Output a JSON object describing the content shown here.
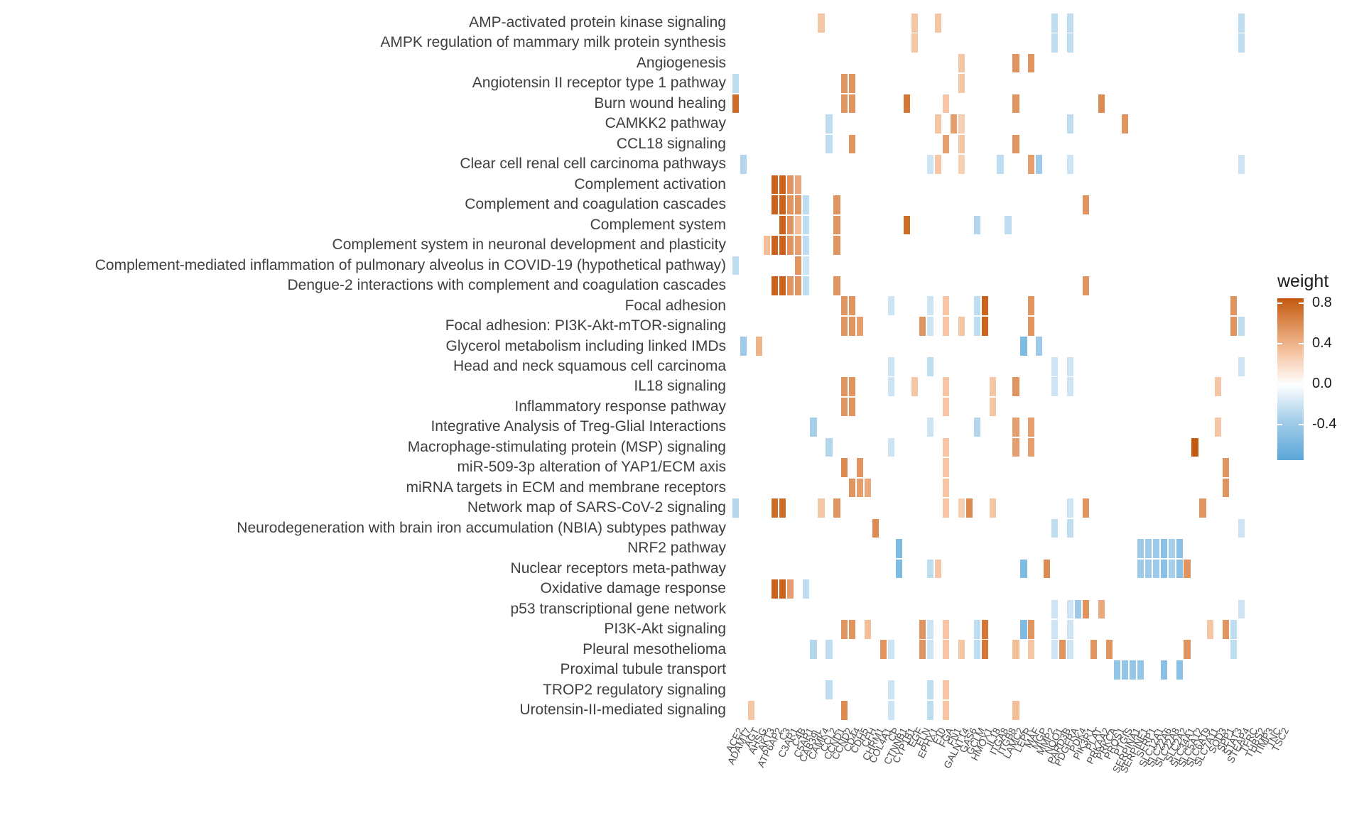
{
  "chart_data": {
    "type": "heatmap",
    "title": "",
    "xlabel": "",
    "ylabel": "",
    "legend": {
      "title": "weight",
      "tick_labels": [
        "0.8",
        "0.4",
        "0.0",
        "-0.4"
      ],
      "tick_values": [
        0.8,
        0.4,
        0.0,
        -0.4
      ],
      "domain": [
        0.85,
        -0.75
      ],
      "position": "right"
    },
    "grid": "off",
    "colors": {
      "high": "#c4590f",
      "mid_high": "#f3bd97",
      "mid": "#ffffff",
      "mid_low": "#a6cfea",
      "low": "#5aa6d8",
      "background": "#ffffff",
      "label_gray": "#3f3f3f"
    },
    "rows": [
      "AMP-activated protein kinase signaling",
      "AMPK regulation of mammary milk protein synthesis",
      "Angiogenesis",
      "Angiotensin II receptor type 1 pathway",
      "Burn wound healing",
      "CAMKK2 pathway",
      "CCL18 signaling",
      "Clear cell renal cell carcinoma pathways",
      "Complement activation",
      "Complement and coagulation cascades",
      "Complement system",
      "Complement system in neuronal development and plasticity",
      "Complement-mediated inflammation of pulmonary alveolus in COVID-19 (hypothetical pathway)",
      "Dengue-2 interactions with complement and coagulation cascades",
      "Focal adhesion",
      "Focal adhesion: PI3K-Akt-mTOR-signaling",
      "Glycerol metabolism including linked IMDs",
      "Head and neck squamous cell carcinoma",
      "IL18 signaling",
      "Inflammatory response pathway",
      "Integrative Analysis of  Treg-Glial Interactions",
      "Macrophage-stimulating protein (MSP) signaling",
      "miR-509-3p alteration of YAP1/ECM axis",
      "miRNA targets in ECM and membrane receptors",
      "Network map of SARS-CoV-2 signaling",
      "Neurodegeneration with brain iron accumulation (NBIA) subtypes pathway",
      "NRF2 pathway",
      "Nuclear receptors meta-pathway",
      "Oxidative damage response",
      "p53 transcriptional gene network",
      "PI3K-Akt signaling",
      "Pleural mesothelioma",
      "Proximal tubule transport",
      "TROP2 regulatory signaling",
      "Urotensin-II-mediated signaling"
    ],
    "columns": [
      "ACE2",
      "ADAM17",
      "AGT",
      "AHSG",
      "AKT3",
      "ATP6AP2",
      "C3",
      "C3AR1",
      "C4B",
      "C5AR1",
      "CAB39L",
      "CAMK4",
      "CCL2",
      "CCND1",
      "CCND2",
      "CD44",
      "CDH5",
      "CFH",
      "CHRM1",
      "COL4A1",
      "CP",
      "CTNNB1",
      "CYP1B1",
      "EGF",
      "ELN",
      "EPHX1",
      "F10",
      "FGA",
      "FN1",
      "GALNT14",
      "GAS6",
      "GCLM",
      "HMOX1",
      "IL18",
      "ITGA8",
      "ITGB8",
      "LAMC2",
      "LEPR",
      "MAF",
      "MGP",
      "MMP2",
      "NQO1",
      "PARD3B",
      "PDGFRA",
      "PDK4",
      "PIK3R1",
      "PLAT",
      "PRKAA2",
      "PRKCA",
      "PROS1",
      "PTGIS",
      "SERPINA1",
      "SERPINE1",
      "SFRP1",
      "SLC12A1",
      "SLC22A6",
      "SLC22A8",
      "SLC2A2",
      "SLC34A1",
      "SLC5A12",
      "SLC6A19",
      "SLC7A11",
      "SOD3",
      "SPP1",
      "STAT3",
      "STEAP4",
      "TFRC",
      "THBS2",
      "TIMP3",
      "TNC",
      "TSC2"
    ],
    "cells": [
      [
        0,
        12,
        0.3
      ],
      [
        0,
        24,
        0.3
      ],
      [
        0,
        27,
        0.3
      ],
      [
        0,
        42,
        -0.25
      ],
      [
        0,
        44,
        -0.25
      ],
      [
        0,
        66,
        -0.25
      ],
      [
        1,
        24,
        0.3
      ],
      [
        1,
        42,
        -0.25
      ],
      [
        1,
        44,
        -0.25
      ],
      [
        1,
        66,
        -0.25
      ],
      [
        2,
        30,
        0.3
      ],
      [
        2,
        37,
        0.55
      ],
      [
        2,
        39,
        0.55
      ],
      [
        3,
        1,
        -0.25
      ],
      [
        3,
        15,
        0.55
      ],
      [
        3,
        16,
        0.55
      ],
      [
        3,
        30,
        0.3
      ],
      [
        4,
        1,
        0.75
      ],
      [
        4,
        15,
        0.55
      ],
      [
        4,
        16,
        0.55
      ],
      [
        4,
        23,
        0.7
      ],
      [
        4,
        28,
        0.3
      ],
      [
        4,
        37,
        0.55
      ],
      [
        4,
        48,
        0.6
      ],
      [
        5,
        13,
        -0.25
      ],
      [
        5,
        27,
        0.3
      ],
      [
        5,
        29,
        0.5
      ],
      [
        5,
        30,
        0.25
      ],
      [
        5,
        44,
        -0.25
      ],
      [
        5,
        51,
        0.55
      ],
      [
        6,
        13,
        -0.25
      ],
      [
        6,
        16,
        0.55
      ],
      [
        6,
        28,
        0.5
      ],
      [
        6,
        30,
        0.3
      ],
      [
        6,
        37,
        0.55
      ],
      [
        7,
        2,
        -0.3
      ],
      [
        7,
        26,
        -0.2
      ],
      [
        7,
        27,
        0.3
      ],
      [
        7,
        30,
        0.25
      ],
      [
        7,
        35,
        -0.25
      ],
      [
        7,
        39,
        0.5
      ],
      [
        7,
        40,
        -0.4
      ],
      [
        7,
        44,
        -0.2
      ],
      [
        7,
        66,
        -0.2
      ],
      [
        8,
        6,
        0.8
      ],
      [
        8,
        7,
        0.8
      ],
      [
        8,
        8,
        0.55
      ],
      [
        8,
        9,
        0.45
      ],
      [
        9,
        6,
        0.8
      ],
      [
        9,
        7,
        0.8
      ],
      [
        9,
        8,
        0.55
      ],
      [
        9,
        9,
        0.55
      ],
      [
        9,
        10,
        -0.25
      ],
      [
        9,
        14,
        0.55
      ],
      [
        9,
        46,
        0.55
      ],
      [
        10,
        7,
        0.8
      ],
      [
        10,
        8,
        0.55
      ],
      [
        10,
        9,
        0.35
      ],
      [
        10,
        10,
        -0.25
      ],
      [
        10,
        14,
        0.55
      ],
      [
        10,
        23,
        0.75
      ],
      [
        10,
        32,
        -0.3
      ],
      [
        10,
        36,
        -0.25
      ],
      [
        11,
        5,
        0.35
      ],
      [
        11,
        6,
        0.8
      ],
      [
        11,
        7,
        0.8
      ],
      [
        11,
        8,
        0.55
      ],
      [
        11,
        9,
        0.5
      ],
      [
        11,
        10,
        -0.25
      ],
      [
        11,
        14,
        0.55
      ],
      [
        12,
        1,
        -0.25
      ],
      [
        12,
        9,
        0.55
      ],
      [
        12,
        10,
        -0.2
      ],
      [
        13,
        6,
        0.8
      ],
      [
        13,
        7,
        0.8
      ],
      [
        13,
        8,
        0.55
      ],
      [
        13,
        9,
        0.55
      ],
      [
        13,
        10,
        -0.25
      ],
      [
        13,
        14,
        0.55
      ],
      [
        13,
        46,
        0.55
      ],
      [
        14,
        15,
        0.55
      ],
      [
        14,
        16,
        0.55
      ],
      [
        14,
        21,
        -0.2
      ],
      [
        14,
        26,
        -0.2
      ],
      [
        14,
        28,
        0.3
      ],
      [
        14,
        32,
        -0.25
      ],
      [
        14,
        33,
        0.8
      ],
      [
        14,
        39,
        0.55
      ],
      [
        14,
        65,
        0.55
      ],
      [
        15,
        15,
        0.55
      ],
      [
        15,
        16,
        0.55
      ],
      [
        15,
        17,
        0.5
      ],
      [
        15,
        25,
        0.55
      ],
      [
        15,
        26,
        -0.2
      ],
      [
        15,
        28,
        0.3
      ],
      [
        15,
        30,
        0.3
      ],
      [
        15,
        32,
        -0.25
      ],
      [
        15,
        33,
        0.8
      ],
      [
        15,
        39,
        0.55
      ],
      [
        15,
        65,
        0.55
      ],
      [
        15,
        66,
        -0.25
      ],
      [
        16,
        2,
        -0.4
      ],
      [
        16,
        4,
        0.4
      ],
      [
        16,
        38,
        -0.55
      ],
      [
        16,
        40,
        -0.4
      ],
      [
        17,
        21,
        -0.2
      ],
      [
        17,
        26,
        -0.25
      ],
      [
        17,
        42,
        -0.2
      ],
      [
        17,
        44,
        -0.2
      ],
      [
        17,
        66,
        -0.2
      ],
      [
        18,
        15,
        0.55
      ],
      [
        18,
        16,
        0.55
      ],
      [
        18,
        21,
        -0.2
      ],
      [
        18,
        24,
        0.3
      ],
      [
        18,
        28,
        0.3
      ],
      [
        18,
        34,
        0.3
      ],
      [
        18,
        37,
        0.55
      ],
      [
        18,
        42,
        -0.2
      ],
      [
        18,
        44,
        -0.2
      ],
      [
        18,
        63,
        0.3
      ],
      [
        19,
        15,
        0.55
      ],
      [
        19,
        16,
        0.55
      ],
      [
        19,
        28,
        0.3
      ],
      [
        19,
        34,
        0.3
      ],
      [
        20,
        11,
        -0.35
      ],
      [
        20,
        26,
        -0.2
      ],
      [
        20,
        32,
        -0.3
      ],
      [
        20,
        37,
        0.5
      ],
      [
        20,
        39,
        0.5
      ],
      [
        20,
        63,
        0.3
      ],
      [
        21,
        13,
        -0.3
      ],
      [
        21,
        21,
        -0.2
      ],
      [
        21,
        28,
        0.3
      ],
      [
        21,
        37,
        0.5
      ],
      [
        21,
        39,
        0.5
      ],
      [
        21,
        60,
        0.85
      ],
      [
        22,
        15,
        0.6
      ],
      [
        22,
        17,
        0.55
      ],
      [
        22,
        28,
        0.3
      ],
      [
        22,
        64,
        0.55
      ],
      [
        23,
        16,
        0.55
      ],
      [
        23,
        17,
        0.5
      ],
      [
        23,
        18,
        0.45
      ],
      [
        23,
        28,
        0.3
      ],
      [
        23,
        64,
        0.55
      ],
      [
        24,
        1,
        -0.3
      ],
      [
        24,
        6,
        0.75
      ],
      [
        24,
        7,
        0.75
      ],
      [
        24,
        12,
        0.3
      ],
      [
        24,
        14,
        0.55
      ],
      [
        24,
        28,
        0.3
      ],
      [
        24,
        30,
        0.25
      ],
      [
        24,
        31,
        0.6
      ],
      [
        24,
        34,
        0.3
      ],
      [
        24,
        44,
        -0.2
      ],
      [
        24,
        46,
        0.55
      ],
      [
        24,
        61,
        0.55
      ],
      [
        25,
        19,
        0.6
      ],
      [
        25,
        42,
        -0.25
      ],
      [
        25,
        44,
        -0.25
      ],
      [
        25,
        66,
        -0.2
      ],
      [
        26,
        22,
        -0.55
      ],
      [
        26,
        53,
        -0.4
      ],
      [
        26,
        54,
        -0.4
      ],
      [
        26,
        55,
        -0.4
      ],
      [
        26,
        56,
        -0.5
      ],
      [
        26,
        57,
        -0.35
      ],
      [
        26,
        58,
        -0.5
      ],
      [
        27,
        22,
        -0.55
      ],
      [
        27,
        26,
        -0.25
      ],
      [
        27,
        27,
        0.3
      ],
      [
        27,
        38,
        -0.55
      ],
      [
        27,
        41,
        0.6
      ],
      [
        27,
        53,
        -0.4
      ],
      [
        27,
        54,
        -0.4
      ],
      [
        27,
        55,
        -0.4
      ],
      [
        27,
        56,
        -0.5
      ],
      [
        27,
        57,
        -0.35
      ],
      [
        27,
        58,
        -0.5
      ],
      [
        27,
        59,
        0.55
      ],
      [
        28,
        6,
        0.8
      ],
      [
        28,
        7,
        0.8
      ],
      [
        28,
        8,
        0.5
      ],
      [
        28,
        10,
        -0.25
      ],
      [
        29,
        42,
        -0.2
      ],
      [
        29,
        44,
        -0.2
      ],
      [
        29,
        45,
        -0.4
      ],
      [
        29,
        46,
        0.55
      ],
      [
        29,
        48,
        0.45
      ],
      [
        29,
        66,
        -0.2
      ],
      [
        30,
        15,
        0.55
      ],
      [
        30,
        16,
        0.55
      ],
      [
        30,
        18,
        0.35
      ],
      [
        30,
        25,
        0.55
      ],
      [
        30,
        26,
        -0.2
      ],
      [
        30,
        28,
        0.3
      ],
      [
        30,
        32,
        -0.25
      ],
      [
        30,
        33,
        0.7
      ],
      [
        30,
        38,
        -0.55
      ],
      [
        30,
        39,
        0.55
      ],
      [
        30,
        42,
        -0.2
      ],
      [
        30,
        44,
        -0.2
      ],
      [
        30,
        62,
        0.3
      ],
      [
        30,
        64,
        0.55
      ],
      [
        30,
        65,
        -0.25
      ],
      [
        31,
        11,
        -0.3
      ],
      [
        31,
        13,
        -0.25
      ],
      [
        31,
        20,
        0.55
      ],
      [
        31,
        21,
        -0.2
      ],
      [
        31,
        25,
        0.55
      ],
      [
        31,
        26,
        -0.2
      ],
      [
        31,
        28,
        0.3
      ],
      [
        31,
        30,
        0.3
      ],
      [
        31,
        32,
        -0.25
      ],
      [
        31,
        33,
        0.7
      ],
      [
        31,
        37,
        0.35
      ],
      [
        31,
        39,
        0.3
      ],
      [
        31,
        42,
        -0.2
      ],
      [
        31,
        43,
        0.55
      ],
      [
        31,
        44,
        -0.2
      ],
      [
        31,
        47,
        0.55
      ],
      [
        31,
        49,
        0.55
      ],
      [
        31,
        59,
        0.55
      ],
      [
        31,
        65,
        -0.25
      ],
      [
        32,
        50,
        -0.45
      ],
      [
        32,
        51,
        -0.45
      ],
      [
        32,
        52,
        -0.45
      ],
      [
        32,
        53,
        -0.45
      ],
      [
        32,
        56,
        -0.5
      ],
      [
        32,
        58,
        -0.5
      ],
      [
        33,
        13,
        -0.25
      ],
      [
        33,
        21,
        -0.2
      ],
      [
        33,
        26,
        -0.25
      ],
      [
        33,
        28,
        0.3
      ],
      [
        34,
        3,
        0.3
      ],
      [
        34,
        15,
        0.6
      ],
      [
        34,
        21,
        -0.2
      ],
      [
        34,
        26,
        -0.25
      ],
      [
        34,
        28,
        0.3
      ],
      [
        34,
        37,
        0.35
      ]
    ]
  },
  "legend": {
    "title": "weight",
    "tick_labels": [
      "0.8",
      "0.4",
      "0.0",
      "-0.4"
    ]
  }
}
